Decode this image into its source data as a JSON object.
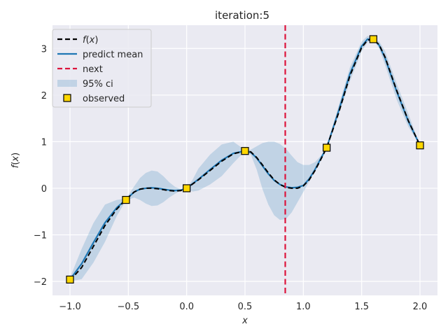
{
  "chart_data": {
    "type": "line",
    "title": "iteration:5",
    "xlabel": "x",
    "ylabel": "f(x)",
    "xlim": [
      -1.15,
      2.15
    ],
    "ylim": [
      -2.3,
      3.5
    ],
    "xticks": [
      -1.0,
      -0.5,
      0.0,
      0.5,
      1.0,
      1.5,
      2.0
    ],
    "xtick_labels": [
      "−1.0",
      "−0.5",
      "0.0",
      "0.5",
      "1.0",
      "1.5",
      "2.0"
    ],
    "yticks": [
      -2,
      -1,
      0,
      1,
      2,
      3
    ],
    "ytick_labels": [
      "−2",
      "−1",
      "0",
      "1",
      "2",
      "3"
    ],
    "grid": true,
    "legend_position": "top-left",
    "colors": {
      "background": "#EAEAF2",
      "grid": "#ffffff",
      "true_function": "#000000",
      "predict_mean": "#1f77b4",
      "next": "#dc143c",
      "ci_fill": "#1f77b4",
      "observed_fill": "#FFD700",
      "observed_edge": "#000000"
    },
    "series": [
      {
        "name": "f(x)",
        "kind": "line",
        "style": "dashed",
        "x": [
          -1.0,
          -0.9,
          -0.8,
          -0.7,
          -0.6,
          -0.52,
          -0.45,
          -0.4,
          -0.35,
          -0.3,
          -0.25,
          -0.2,
          -0.15,
          -0.1,
          -0.05,
          0.0,
          0.1,
          0.2,
          0.3,
          0.4,
          0.5,
          0.55,
          0.6,
          0.65,
          0.7,
          0.75,
          0.8,
          0.85,
          0.9,
          0.95,
          1.0,
          1.05,
          1.1,
          1.15,
          1.2,
          1.3,
          1.4,
          1.5,
          1.55,
          1.6,
          1.65,
          1.7,
          1.8,
          1.9,
          2.0
        ],
        "y": [
          -1.98,
          -1.7,
          -1.25,
          -0.8,
          -0.45,
          -0.24,
          -0.08,
          -0.02,
          0.0,
          0.0,
          -0.01,
          -0.03,
          -0.05,
          -0.06,
          -0.05,
          0.0,
          0.18,
          0.38,
          0.58,
          0.74,
          0.8,
          0.78,
          0.66,
          0.5,
          0.33,
          0.18,
          0.08,
          0.02,
          0.0,
          0.0,
          0.05,
          0.18,
          0.38,
          0.62,
          0.87,
          1.6,
          2.42,
          3.02,
          3.18,
          3.2,
          3.08,
          2.82,
          2.1,
          1.45,
          0.92
        ]
      },
      {
        "name": "predict mean",
        "kind": "line",
        "style": "solid",
        "x": [
          -1.0,
          -0.9,
          -0.8,
          -0.7,
          -0.6,
          -0.52,
          -0.45,
          -0.4,
          -0.35,
          -0.3,
          -0.25,
          -0.2,
          -0.15,
          -0.1,
          -0.05,
          0.0,
          0.1,
          0.2,
          0.3,
          0.4,
          0.5,
          0.55,
          0.6,
          0.65,
          0.7,
          0.75,
          0.8,
          0.85,
          0.9,
          0.95,
          1.0,
          1.05,
          1.1,
          1.15,
          1.2,
          1.3,
          1.4,
          1.5,
          1.55,
          1.6,
          1.65,
          1.7,
          1.8,
          1.9,
          2.0
        ],
        "y": [
          -1.96,
          -1.62,
          -1.17,
          -0.74,
          -0.42,
          -0.24,
          -0.08,
          -0.02,
          0.0,
          0.01,
          0.0,
          -0.02,
          -0.04,
          -0.05,
          -0.04,
          0.0,
          0.19,
          0.4,
          0.6,
          0.75,
          0.8,
          0.77,
          0.65,
          0.48,
          0.31,
          0.17,
          0.08,
          0.03,
          0.01,
          0.02,
          0.06,
          0.2,
          0.4,
          0.64,
          0.87,
          1.64,
          2.46,
          3.05,
          3.2,
          3.2,
          3.07,
          2.8,
          2.08,
          1.44,
          0.92
        ]
      },
      {
        "name": "next",
        "kind": "vline",
        "style": "dashed",
        "x": 0.845
      },
      {
        "name": "95% ci",
        "kind": "band",
        "x": [
          -1.0,
          -0.9,
          -0.8,
          -0.7,
          -0.6,
          -0.52,
          -0.45,
          -0.4,
          -0.35,
          -0.3,
          -0.25,
          -0.2,
          -0.15,
          -0.1,
          -0.05,
          0.0,
          0.05,
          0.1,
          0.2,
          0.3,
          0.4,
          0.5,
          0.55,
          0.6,
          0.65,
          0.7,
          0.75,
          0.8,
          0.85,
          0.9,
          0.95,
          1.0,
          1.05,
          1.1,
          1.15,
          1.2,
          1.3,
          1.4,
          1.5,
          1.55,
          1.6,
          1.65,
          1.7,
          1.8,
          1.9,
          2.0
        ],
        "lower": [
          -2.0,
          -1.95,
          -1.6,
          -1.15,
          -0.6,
          -0.26,
          -0.2,
          -0.25,
          -0.33,
          -0.38,
          -0.37,
          -0.3,
          -0.2,
          -0.12,
          -0.05,
          0.0,
          -0.07,
          -0.05,
          0.08,
          0.26,
          0.54,
          0.8,
          0.72,
          0.4,
          -0.02,
          -0.35,
          -0.58,
          -0.68,
          -0.66,
          -0.52,
          -0.3,
          -0.08,
          0.14,
          0.38,
          0.62,
          0.87,
          1.55,
          2.3,
          2.94,
          3.13,
          3.2,
          3.0,
          2.65,
          1.9,
          1.32,
          0.92
        ],
        "upper": [
          -1.92,
          -1.3,
          -0.75,
          -0.35,
          -0.25,
          -0.22,
          0.04,
          0.22,
          0.33,
          0.38,
          0.36,
          0.26,
          0.13,
          0.03,
          -0.02,
          0.0,
          0.18,
          0.42,
          0.72,
          0.94,
          1.0,
          0.82,
          0.83,
          0.9,
          0.97,
          1.0,
          1.0,
          0.95,
          0.85,
          0.7,
          0.56,
          0.5,
          0.5,
          0.56,
          0.7,
          0.87,
          1.75,
          2.6,
          3.15,
          3.27,
          3.21,
          3.15,
          2.95,
          2.25,
          1.6,
          0.92
        ]
      },
      {
        "name": "observed",
        "kind": "scatter",
        "x": [
          -1.0,
          -0.52,
          0.0,
          0.5,
          1.2,
          1.6,
          2.0
        ],
        "y": [
          -1.96,
          -0.25,
          0.0,
          0.8,
          0.87,
          3.2,
          0.92
        ]
      }
    ]
  }
}
